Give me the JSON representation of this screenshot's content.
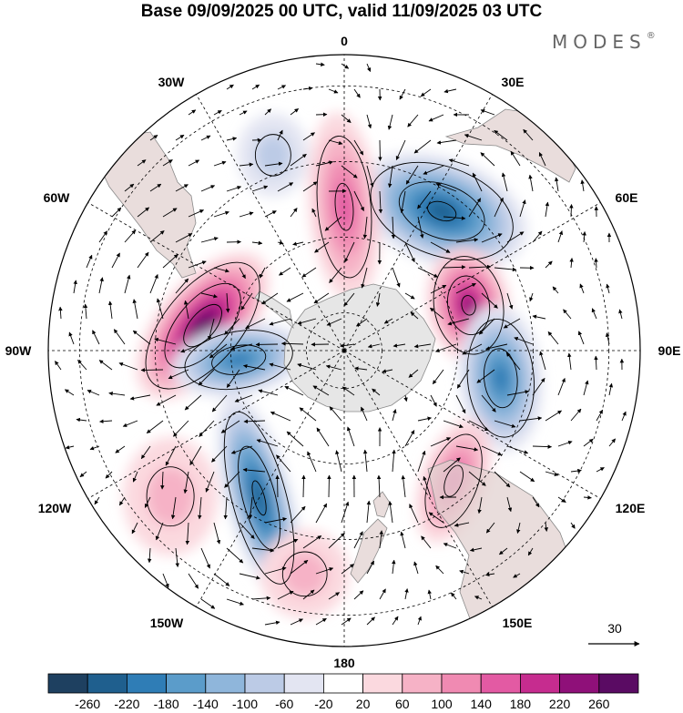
{
  "title": "Base 09/09/2025 00 UTC, valid 11/09/2025 03 UTC",
  "brand": "MODES",
  "brand_mark": "®",
  "longitude_labels": {
    "top": "0",
    "upper_left": "30W",
    "upper_right": "30E",
    "left_upper": "60W",
    "right_upper": "60E",
    "left": "90W",
    "right": "90E",
    "left_lower": "120W",
    "right_lower": "120E",
    "lower_left": "150W",
    "lower_right": "150E",
    "bottom": "180"
  },
  "vector_reference": "30",
  "colorbar": {
    "ticks": [
      "-260",
      "-220",
      "-180",
      "-140",
      "-100",
      "-60",
      "-20",
      "20",
      "60",
      "100",
      "140",
      "180",
      "220",
      "260"
    ],
    "colors": [
      "#1e4060",
      "#1f5f8e",
      "#2f7db6",
      "#5b9cca",
      "#8fb6db",
      "#bccbe6",
      "#e3e5f2",
      "#ffffff",
      "#fbd9df",
      "#f6b2c6",
      "#f08ab2",
      "#e35aa3",
      "#c62c8f",
      "#8f1079",
      "#5a0b63"
    ]
  },
  "colors": {
    "land": "#e2d2d0",
    "antarctica": "#e6e6e6",
    "coast": "#8a8a8a",
    "grid": "#000000"
  },
  "anomaly_centers": [
    {
      "name": "neg-south-atlantic",
      "value": -240,
      "rx": 0.3,
      "ry": 0.18,
      "lon": 35,
      "lat": -45,
      "rot": 20
    },
    {
      "name": "pos-south-indian",
      "value": 220,
      "rx": 0.2,
      "ry": 0.14,
      "lon": 70,
      "lat": -55,
      "rot": 80
    },
    {
      "name": "neg-south-indian-east",
      "value": -200,
      "rx": 0.14,
      "ry": 0.25,
      "lon": 100,
      "lat": -48,
      "rot": -5
    },
    {
      "name": "pos-tasman",
      "value": 160,
      "rx": 0.11,
      "ry": 0.22,
      "lon": 140,
      "lat": -45,
      "rot": 20
    },
    {
      "name": "pos-drake",
      "value": 260,
      "rx": 0.15,
      "ry": 0.3,
      "lon": -80,
      "lat": -52,
      "rot": 40
    },
    {
      "name": "neg-amundsen",
      "value": -200,
      "rx": 0.12,
      "ry": 0.23,
      "lon": -95,
      "lat": -62,
      "rot": 80
    },
    {
      "name": "neg-pacific",
      "value": -220,
      "rx": 0.11,
      "ry": 0.36,
      "lon": -150,
      "lat": -45,
      "rot": -15
    },
    {
      "name": "pos-weddell",
      "value": 160,
      "rx": 0.12,
      "ry": 0.32,
      "lon": 0,
      "lat": -52,
      "rot": -5
    },
    {
      "name": "pos-south-pacific-west",
      "value": 80,
      "rx": 0.16,
      "ry": 0.2,
      "lon": -130,
      "lat": -30,
      "rot": 0
    },
    {
      "name": "pos-south-pacific",
      "value": 60,
      "rx": 0.15,
      "ry": 0.15,
      "lon": -170,
      "lat": -30,
      "rot": 0
    },
    {
      "name": "neg-weak-west",
      "value": -60,
      "rx": 0.12,
      "ry": 0.14,
      "lon": -20,
      "lat": -35,
      "rot": 0
    }
  ]
}
